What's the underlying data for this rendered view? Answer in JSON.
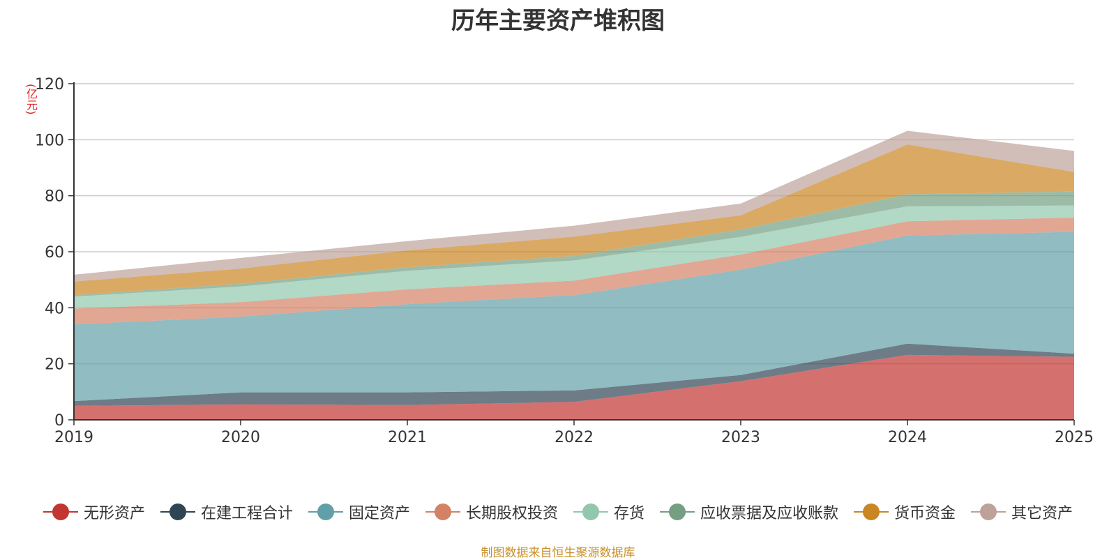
{
  "chart_data": {
    "type": "area",
    "stacked": true,
    "title": "历年主要资产堆积图",
    "unit_label": "(亿元)",
    "categories": [
      "2019",
      "2020",
      "2021",
      "2022",
      "2023",
      "2024",
      "2025"
    ],
    "ylim": [
      0,
      120
    ],
    "yticks": [
      0,
      20,
      40,
      60,
      80,
      100,
      120
    ],
    "grid": true,
    "legend_position": "bottom",
    "series": [
      {
        "name": "无形资产",
        "color": "#c23531",
        "values": [
          5.0,
          5.5,
          5.3,
          6.4,
          13.8,
          23.2,
          22.5
        ]
      },
      {
        "name": "在建工程合计",
        "color": "#2f4554",
        "values": [
          1.7,
          4.3,
          4.5,
          4.1,
          2.2,
          4.0,
          1.1
        ]
      },
      {
        "name": "固定资产",
        "color": "#61a0a8",
        "values": [
          27.4,
          27.0,
          31.5,
          34.0,
          37.6,
          38.6,
          43.5
        ]
      },
      {
        "name": "长期股权投资",
        "color": "#d48265",
        "values": [
          5.6,
          5.2,
          5.3,
          5.2,
          5.4,
          5.1,
          5.1
        ]
      },
      {
        "name": "存货",
        "color": "#91c7ae",
        "values": [
          4.3,
          5.6,
          6.6,
          7.2,
          6.3,
          5.3,
          4.3
        ]
      },
      {
        "name": "应收票据及应收账款",
        "color": "#749f83",
        "values": [
          0.5,
          1.0,
          1.3,
          1.6,
          2.7,
          4.3,
          5.0
        ]
      },
      {
        "name": "货币资金",
        "color": "#ca8622",
        "values": [
          4.9,
          5.4,
          6.0,
          6.9,
          5.0,
          17.8,
          7.0
        ]
      },
      {
        "name": "其它资产",
        "color": "#bda29a",
        "values": [
          2.4,
          3.8,
          3.3,
          3.9,
          4.2,
          4.9,
          7.5
        ]
      }
    ]
  },
  "footer": {
    "source": "制图数据来自恒生聚源数据库"
  }
}
